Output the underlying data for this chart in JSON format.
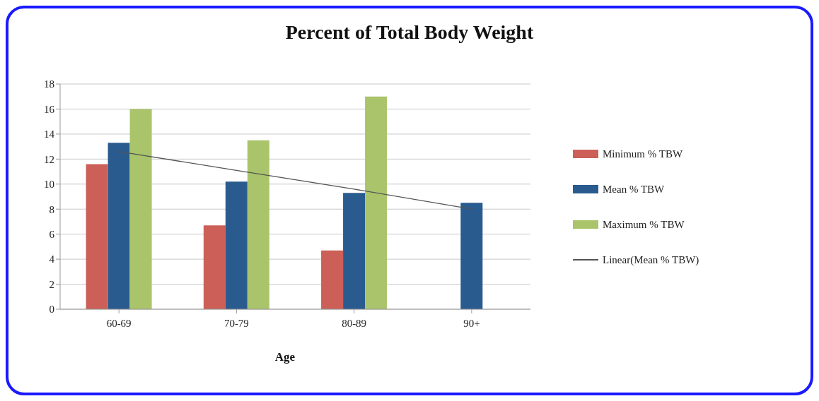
{
  "chart_data": {
    "type": "bar",
    "title": "Percent of Total Body Weight",
    "xlabel": "Age",
    "categories": [
      "60-69",
      "70-79",
      "80-89",
      "90+"
    ],
    "series": [
      {
        "name": "Minimum % TBW",
        "color": "#cc6058",
        "values": [
          11.6,
          6.7,
          4.7,
          null
        ]
      },
      {
        "name": "Mean % TBW",
        "color": "#2a5b8f",
        "values": [
          13.3,
          10.2,
          9.3,
          8.5
        ]
      },
      {
        "name": "Maximum % TBW",
        "color": "#a9c46a",
        "values": [
          16,
          13.5,
          17,
          null
        ]
      },
      {
        "name": "Linear(Mean % TBW)",
        "type": "line",
        "color": "#555555",
        "values": [
          12.6,
          11.1,
          9.6,
          8.0
        ]
      }
    ],
    "ylim": [
      0,
      18
    ],
    "yticks": [
      0,
      2,
      4,
      6,
      8,
      10,
      12,
      14,
      16,
      18
    ],
    "grid": "y",
    "legend": "right",
    "marker": "none"
  }
}
